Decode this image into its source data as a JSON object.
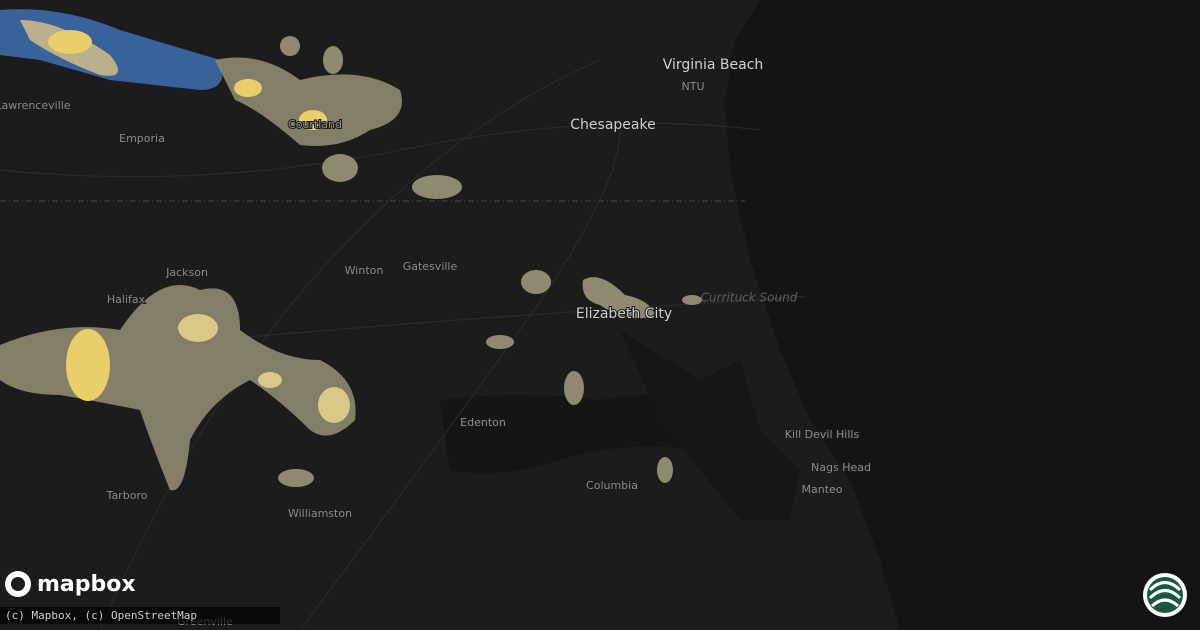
{
  "places": [
    {
      "label": "Virginia Beach"
    },
    {
      "label": "NTU"
    },
    {
      "label": "Chesapeake"
    },
    {
      "label": "Lawrenceville"
    },
    {
      "label": "Emporia"
    },
    {
      "label": "Courtland"
    },
    {
      "label": "Jackson"
    },
    {
      "label": "Halifax"
    },
    {
      "label": "Winton"
    },
    {
      "label": "Gatesville"
    },
    {
      "label": "Elizabeth City"
    },
    {
      "label": "Currituck Sound"
    },
    {
      "label": "Edenton"
    },
    {
      "label": "Kill Devil Hills"
    },
    {
      "label": "Nags Head"
    },
    {
      "label": "Manteo"
    },
    {
      "label": "Columbia"
    },
    {
      "label": "Tarboro"
    },
    {
      "label": "Williamston"
    },
    {
      "label": "Greenville"
    }
  ],
  "logo": {
    "text": "mapbox"
  },
  "attribution": "(c) Mapbox, (c) OpenStreetMap"
}
